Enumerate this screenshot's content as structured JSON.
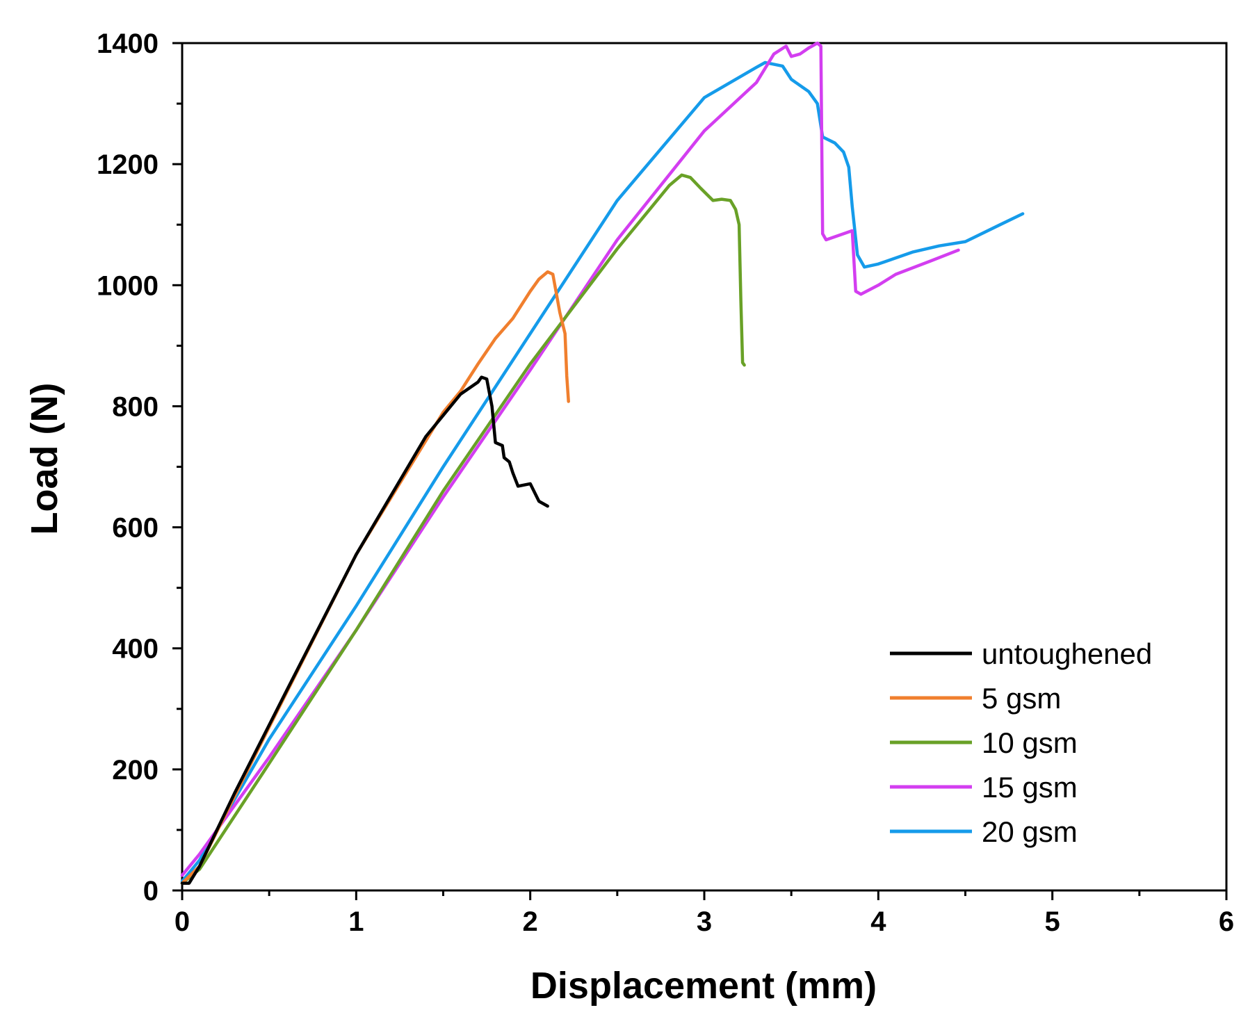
{
  "chart_data": {
    "type": "line",
    "title": "",
    "xlabel": "Displacement (mm)",
    "ylabel": "Load (N)",
    "xlim": [
      0,
      6
    ],
    "ylim": [
      0,
      1400
    ],
    "xticks": [
      0,
      1,
      2,
      3,
      4,
      5,
      6
    ],
    "yticks": [
      0,
      200,
      400,
      600,
      800,
      1000,
      1200,
      1400
    ],
    "xtick_labels": [
      "0",
      "1",
      "2",
      "3",
      "4",
      "5",
      "6"
    ],
    "ytick_labels": [
      "0",
      "200",
      "400",
      "600",
      "800",
      "1000",
      "1200",
      "1400"
    ],
    "legend_position": "bottom-right",
    "series": [
      {
        "name": "untoughened",
        "color": "#000000",
        "points": [
          [
            0.0,
            12
          ],
          [
            0.04,
            12
          ],
          [
            0.1,
            40
          ],
          [
            0.3,
            160
          ],
          [
            0.6,
            330
          ],
          [
            1.0,
            555
          ],
          [
            1.4,
            750
          ],
          [
            1.6,
            820
          ],
          [
            1.7,
            840
          ],
          [
            1.72,
            848
          ],
          [
            1.75,
            845
          ],
          [
            1.78,
            800
          ],
          [
            1.8,
            740
          ],
          [
            1.84,
            735
          ],
          [
            1.85,
            715
          ],
          [
            1.88,
            708
          ],
          [
            1.9,
            690
          ],
          [
            1.93,
            668
          ],
          [
            2.0,
            672
          ],
          [
            2.05,
            643
          ],
          [
            2.1,
            635
          ]
        ]
      },
      {
        "name": "5 gsm",
        "color": "#f07f2e",
        "points": [
          [
            0.0,
            12
          ],
          [
            0.1,
            40
          ],
          [
            0.5,
            270
          ],
          [
            1.0,
            555
          ],
          [
            1.5,
            790
          ],
          [
            1.6,
            825
          ],
          [
            1.7,
            870
          ],
          [
            1.8,
            912
          ],
          [
            1.9,
            945
          ],
          [
            2.0,
            990
          ],
          [
            2.05,
            1010
          ],
          [
            2.1,
            1022
          ],
          [
            2.13,
            1018
          ],
          [
            2.17,
            955
          ],
          [
            2.2,
            920
          ],
          [
            2.21,
            850
          ],
          [
            2.22,
            808
          ]
        ]
      },
      {
        "name": "10 gsm",
        "color": "#69a127",
        "points": [
          [
            0.0,
            12
          ],
          [
            0.1,
            35
          ],
          [
            0.5,
            210
          ],
          [
            1.0,
            430
          ],
          [
            1.5,
            660
          ],
          [
            2.0,
            870
          ],
          [
            2.5,
            1060
          ],
          [
            2.7,
            1130
          ],
          [
            2.8,
            1165
          ],
          [
            2.87,
            1182
          ],
          [
            2.92,
            1178
          ],
          [
            2.98,
            1160
          ],
          [
            3.05,
            1140
          ],
          [
            3.1,
            1142
          ],
          [
            3.15,
            1140
          ],
          [
            3.18,
            1125
          ],
          [
            3.2,
            1100
          ],
          [
            3.21,
            975
          ],
          [
            3.22,
            872
          ],
          [
            3.23,
            868
          ]
        ]
      },
      {
        "name": "15 gsm",
        "color": "#d33ef0",
        "points": [
          [
            0.0,
            25
          ],
          [
            0.1,
            60
          ],
          [
            0.5,
            220
          ],
          [
            1.0,
            430
          ],
          [
            1.5,
            650
          ],
          [
            2.0,
            860
          ],
          [
            2.5,
            1075
          ],
          [
            3.0,
            1255
          ],
          [
            3.3,
            1335
          ],
          [
            3.4,
            1382
          ],
          [
            3.47,
            1395
          ],
          [
            3.5,
            1378
          ],
          [
            3.55,
            1382
          ],
          [
            3.6,
            1392
          ],
          [
            3.65,
            1400
          ],
          [
            3.67,
            1395
          ],
          [
            3.68,
            1085
          ],
          [
            3.7,
            1075
          ],
          [
            3.8,
            1085
          ],
          [
            3.85,
            1090
          ],
          [
            3.87,
            990
          ],
          [
            3.9,
            985
          ],
          [
            4.0,
            1000
          ],
          [
            4.1,
            1018
          ],
          [
            4.3,
            1040
          ],
          [
            4.46,
            1058
          ]
        ]
      },
      {
        "name": "20 gsm",
        "color": "#159bea",
        "points": [
          [
            0.0,
            15
          ],
          [
            0.1,
            50
          ],
          [
            0.5,
            250
          ],
          [
            1.0,
            470
          ],
          [
            1.5,
            700
          ],
          [
            2.0,
            920
          ],
          [
            2.5,
            1140
          ],
          [
            3.0,
            1310
          ],
          [
            3.3,
            1360
          ],
          [
            3.35,
            1368
          ],
          [
            3.45,
            1362
          ],
          [
            3.5,
            1340
          ],
          [
            3.6,
            1320
          ],
          [
            3.65,
            1300
          ],
          [
            3.68,
            1245
          ],
          [
            3.75,
            1235
          ],
          [
            3.8,
            1220
          ],
          [
            3.83,
            1195
          ],
          [
            3.85,
            1130
          ],
          [
            3.88,
            1050
          ],
          [
            3.92,
            1030
          ],
          [
            4.0,
            1035
          ],
          [
            4.2,
            1055
          ],
          [
            4.35,
            1065
          ],
          [
            4.5,
            1072
          ],
          [
            4.7,
            1100
          ],
          [
            4.83,
            1118
          ]
        ]
      }
    ]
  }
}
